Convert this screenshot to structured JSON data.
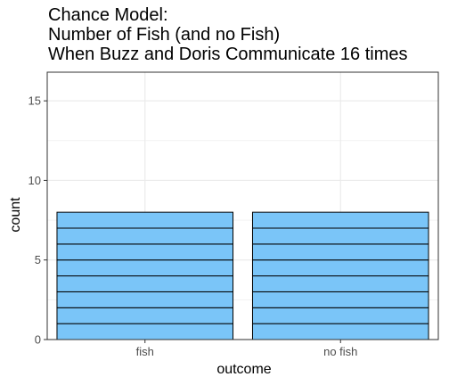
{
  "chart_data": {
    "type": "bar",
    "title": [
      "Chance Model:",
      "Number of Fish (and no Fish)",
      "When Buzz and Doris Communicate 16 times"
    ],
    "xlabel": "outcome",
    "ylabel": "count",
    "categories": [
      "fish",
      "no fish"
    ],
    "values": [
      8,
      8
    ],
    "stacked_unit_height": 1,
    "ylim": [
      0,
      16.8
    ],
    "yticks": [
      0,
      5,
      10,
      15
    ],
    "grid": true,
    "legend": "none",
    "colors": {
      "bar_fill": "#7AC5F8",
      "bar_outline": "#000000",
      "panel_border": "#333333",
      "grid": "#ebebeb"
    }
  }
}
